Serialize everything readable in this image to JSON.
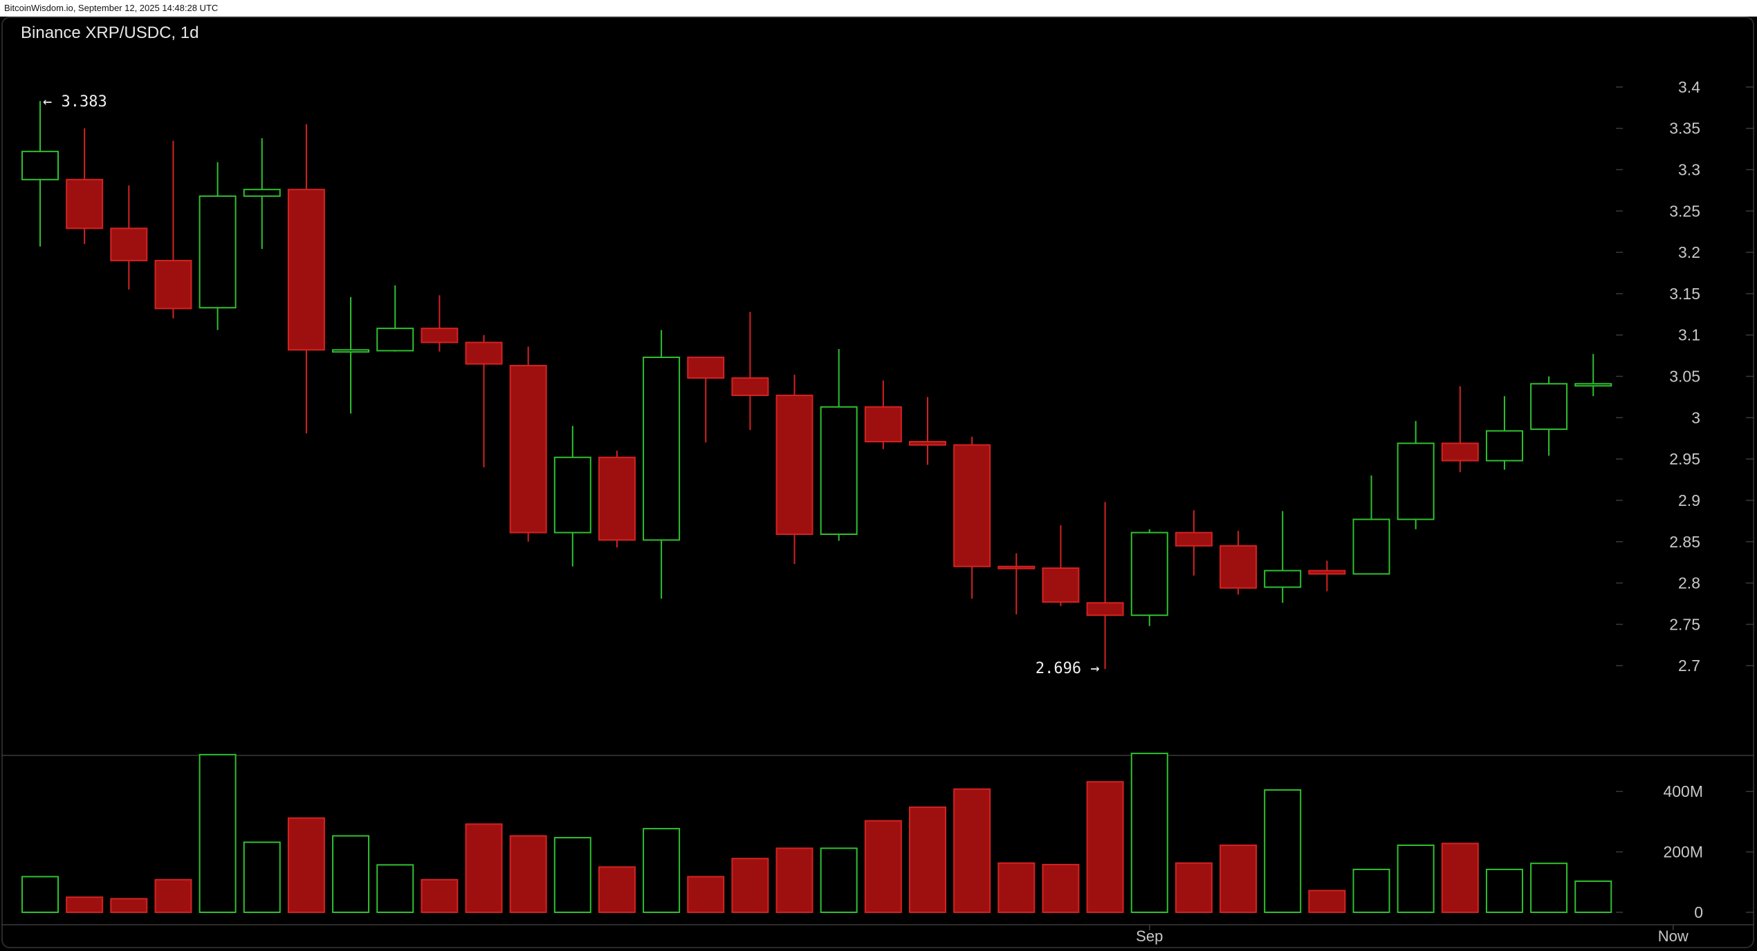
{
  "watermark": "BitcoinWisdom.io, September 12, 2025 14:48:28 UTC",
  "chart_data": {
    "type": "candlestick",
    "title": "Binance XRP/USDC, 1d",
    "ylim": [
      2.655,
      3.435
    ],
    "y_ticks": [
      "3.4",
      "3.35",
      "3.3",
      "3.25",
      "3.2",
      "3.15",
      "3.1",
      "3.05",
      "3",
      "2.95",
      "2.9",
      "2.85",
      "2.8",
      "2.75",
      "2.7"
    ],
    "x_labels": [
      {
        "label": "Sep",
        "index": 25
      },
      {
        "label": "Now",
        "index": 36.8
      }
    ],
    "annotations": {
      "high": {
        "text": "← 3.383",
        "value": 3.383,
        "index": 0
      },
      "low": {
        "text": "2.696 →",
        "value": 2.696,
        "index": 24
      }
    },
    "colors": {
      "up": "#2fc12f",
      "down": "#9e1010",
      "down_edge": "#d42222",
      "grid": "#3a3a3a"
    },
    "candles": [
      {
        "o": 3.288,
        "h": 3.383,
        "l": 3.207,
        "c": 3.322
      },
      {
        "o": 3.288,
        "h": 3.35,
        "l": 3.21,
        "c": 3.229
      },
      {
        "o": 3.229,
        "h": 3.281,
        "l": 3.155,
        "c": 3.19
      },
      {
        "o": 3.19,
        "h": 3.335,
        "l": 3.12,
        "c": 3.132
      },
      {
        "o": 3.133,
        "h": 3.309,
        "l": 3.106,
        "c": 3.268
      },
      {
        "o": 3.268,
        "h": 3.338,
        "l": 3.204,
        "c": 3.276
      },
      {
        "o": 3.276,
        "h": 3.355,
        "l": 2.981,
        "c": 3.082
      },
      {
        "o": 3.082,
        "h": 3.146,
        "l": 3.005,
        "c": 3.082
      },
      {
        "o": 3.081,
        "h": 3.16,
        "l": 3.08,
        "c": 3.108
      },
      {
        "o": 3.108,
        "h": 3.148,
        "l": 3.08,
        "c": 3.091
      },
      {
        "o": 3.091,
        "h": 3.1,
        "l": 2.94,
        "c": 3.065
      },
      {
        "o": 3.063,
        "h": 3.086,
        "l": 2.85,
        "c": 2.861
      },
      {
        "o": 2.861,
        "h": 2.99,
        "l": 2.82,
        "c": 2.952
      },
      {
        "o": 2.952,
        "h": 2.96,
        "l": 2.843,
        "c": 2.852
      },
      {
        "o": 2.852,
        "h": 3.106,
        "l": 2.781,
        "c": 3.073
      },
      {
        "o": 3.073,
        "h": 3.073,
        "l": 2.97,
        "c": 3.048
      },
      {
        "o": 3.048,
        "h": 3.128,
        "l": 2.985,
        "c": 3.027
      },
      {
        "o": 3.027,
        "h": 3.052,
        "l": 2.823,
        "c": 2.859
      },
      {
        "o": 2.859,
        "h": 3.083,
        "l": 2.851,
        "c": 3.013
      },
      {
        "o": 3.013,
        "h": 3.045,
        "l": 2.962,
        "c": 2.971
      },
      {
        "o": 2.971,
        "h": 3.025,
        "l": 2.943,
        "c": 2.967
      },
      {
        "o": 2.967,
        "h": 2.977,
        "l": 2.781,
        "c": 2.82
      },
      {
        "o": 2.82,
        "h": 2.836,
        "l": 2.762,
        "c": 2.818
      },
      {
        "o": 2.818,
        "h": 2.87,
        "l": 2.772,
        "c": 2.777
      },
      {
        "o": 2.776,
        "h": 2.898,
        "l": 2.696,
        "c": 2.761
      },
      {
        "o": 2.761,
        "h": 2.865,
        "l": 2.748,
        "c": 2.861
      },
      {
        "o": 2.861,
        "h": 2.888,
        "l": 2.809,
        "c": 2.845
      },
      {
        "o": 2.845,
        "h": 2.863,
        "l": 2.786,
        "c": 2.794
      },
      {
        "o": 2.795,
        "h": 2.887,
        "l": 2.776,
        "c": 2.815
      },
      {
        "o": 2.815,
        "h": 2.827,
        "l": 2.79,
        "c": 2.811
      },
      {
        "o": 2.811,
        "h": 2.93,
        "l": 2.811,
        "c": 2.877
      },
      {
        "o": 2.877,
        "h": 2.996,
        "l": 2.865,
        "c": 2.969
      },
      {
        "o": 2.969,
        "h": 3.038,
        "l": 2.934,
        "c": 2.948
      },
      {
        "o": 2.948,
        "h": 3.026,
        "l": 2.937,
        "c": 2.984
      },
      {
        "o": 2.986,
        "h": 3.05,
        "l": 2.954,
        "c": 3.041
      },
      {
        "o": 3.041,
        "h": 3.077,
        "l": 3.026,
        "c": 3.041
      }
    ],
    "volume": {
      "ylim": [
        0,
        540
      ],
      "y_ticks": [
        {
          "label": "400M",
          "value": 400
        },
        {
          "label": "200M",
          "value": 200
        },
        {
          "label": "0",
          "value": 0
        }
      ],
      "values": [
        118,
        50,
        45,
        108,
        522,
        232,
        312,
        253,
        157,
        108,
        292,
        253,
        247,
        150,
        277,
        118,
        178,
        212,
        212,
        303,
        348,
        408,
        163,
        158,
        432,
        526,
        163,
        222,
        405,
        72,
        142,
        222,
        228,
        142,
        162,
        103
      ]
    }
  }
}
